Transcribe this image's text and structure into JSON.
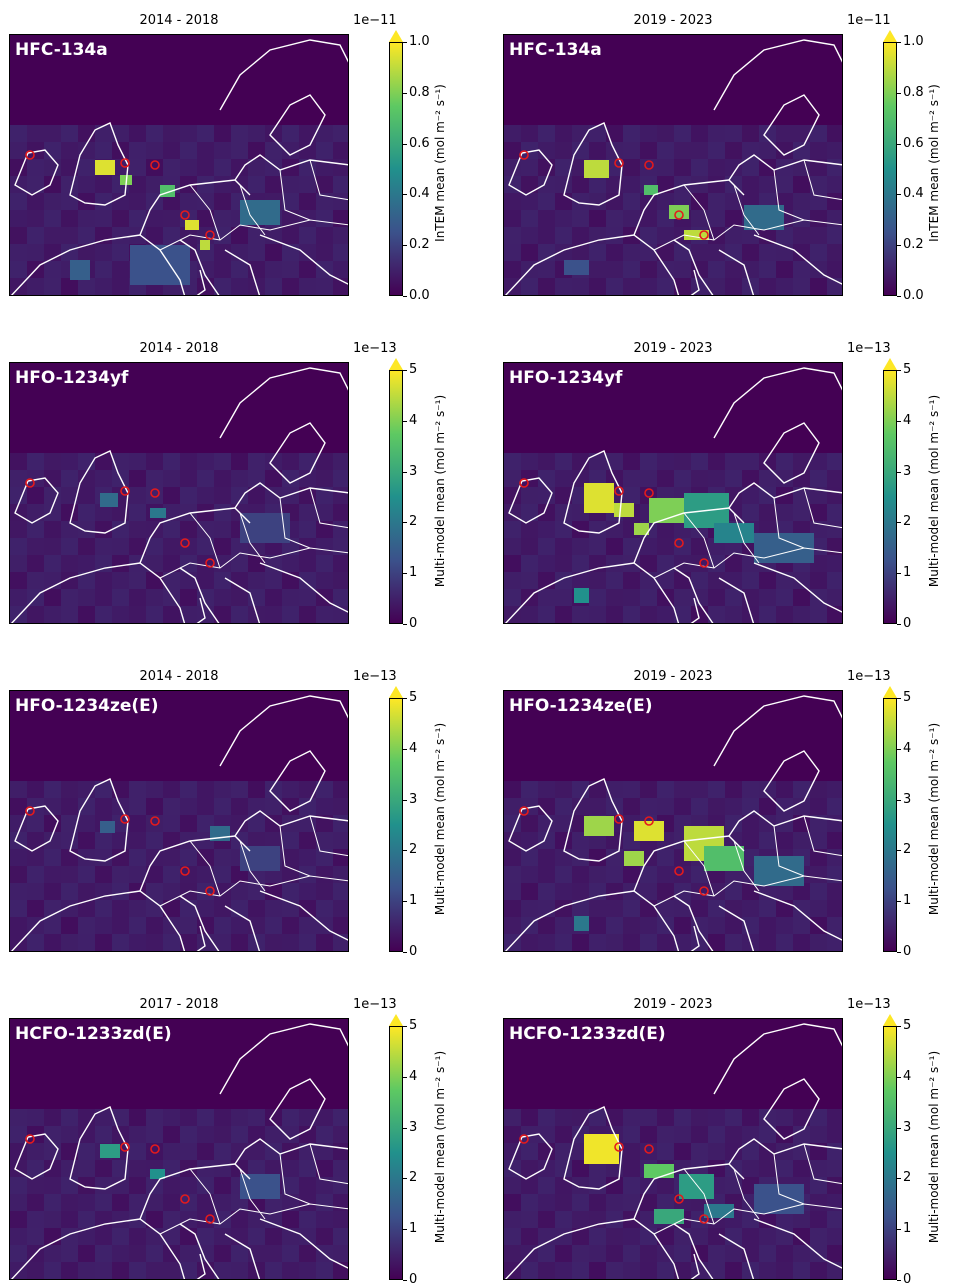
{
  "colormap": "viridis",
  "colors": {
    "low": "#440154",
    "mid": "#21918c",
    "high": "#fde725",
    "coast": "#ffffff",
    "site_marker": "#e41a1c"
  },
  "chart_data": [
    {
      "type": "heatmap",
      "species": "HFC-134a",
      "period": "2014 - 2018",
      "colorbar_label": "InTEM mean (mol m⁻² s⁻¹)",
      "scale_label": "1e−11",
      "ticks": [
        "0.0",
        "0.2",
        "0.4",
        "0.6",
        "0.8",
        "1.0"
      ],
      "vmin": 0,
      "vmax": 1.0,
      "extend": "max"
    },
    {
      "type": "heatmap",
      "species": "HFC-134a",
      "period": "2019 - 2023",
      "colorbar_label": "InTEM mean (mol m⁻² s⁻¹)",
      "scale_label": "1e−11",
      "ticks": [
        "0.0",
        "0.2",
        "0.4",
        "0.6",
        "0.8",
        "1.0"
      ],
      "vmin": 0,
      "vmax": 1.0,
      "extend": "max"
    },
    {
      "type": "heatmap",
      "species": "HFO-1234yf",
      "period": "2014 - 2018",
      "colorbar_label": "Multi-model mean (mol m⁻² s⁻¹)",
      "scale_label": "1e−13",
      "ticks": [
        "0",
        "1",
        "2",
        "3",
        "4",
        "5"
      ],
      "vmin": 0,
      "vmax": 5,
      "extend": "max"
    },
    {
      "type": "heatmap",
      "species": "HFO-1234yf",
      "period": "2019 - 2023",
      "colorbar_label": "Multi-model mean (mol m⁻² s⁻¹)",
      "scale_label": "1e−13",
      "ticks": [
        "0",
        "1",
        "2",
        "3",
        "4",
        "5"
      ],
      "vmin": 0,
      "vmax": 5,
      "extend": "max"
    },
    {
      "type": "heatmap",
      "species": "HFO-1234ze(E)",
      "period": "2014 - 2018",
      "colorbar_label": "Multi-model mean (mol m⁻² s⁻¹)",
      "scale_label": "1e−13",
      "ticks": [
        "0",
        "1",
        "2",
        "3",
        "4",
        "5"
      ],
      "vmin": 0,
      "vmax": 5,
      "extend": "max"
    },
    {
      "type": "heatmap",
      "species": "HFO-1234ze(E)",
      "period": "2019 - 2023",
      "colorbar_label": "Multi-model mean (mol m⁻² s⁻¹)",
      "scale_label": "1e−13",
      "ticks": [
        "0",
        "1",
        "2",
        "3",
        "4",
        "5"
      ],
      "vmin": 0,
      "vmax": 5,
      "extend": "max"
    },
    {
      "type": "heatmap",
      "species": "HCFO-1233zd(E)",
      "period": "2017 - 2018",
      "colorbar_label": "Multi-model mean (mol m⁻² s⁻¹)",
      "scale_label": "1e−13",
      "ticks": [
        "0",
        "1",
        "2",
        "3",
        "4",
        "5"
      ],
      "vmin": 0,
      "vmax": 5,
      "extend": "max"
    },
    {
      "type": "heatmap",
      "species": "HCFO-1233zd(E)",
      "period": "2019 - 2023",
      "colorbar_label": "Multi-model mean (mol m⁻² s⁻¹)",
      "scale_label": "1e−13",
      "ticks": [
        "0",
        "1",
        "2",
        "3",
        "4",
        "5"
      ],
      "vmin": 0,
      "vmax": 5,
      "extend": "max"
    }
  ]
}
